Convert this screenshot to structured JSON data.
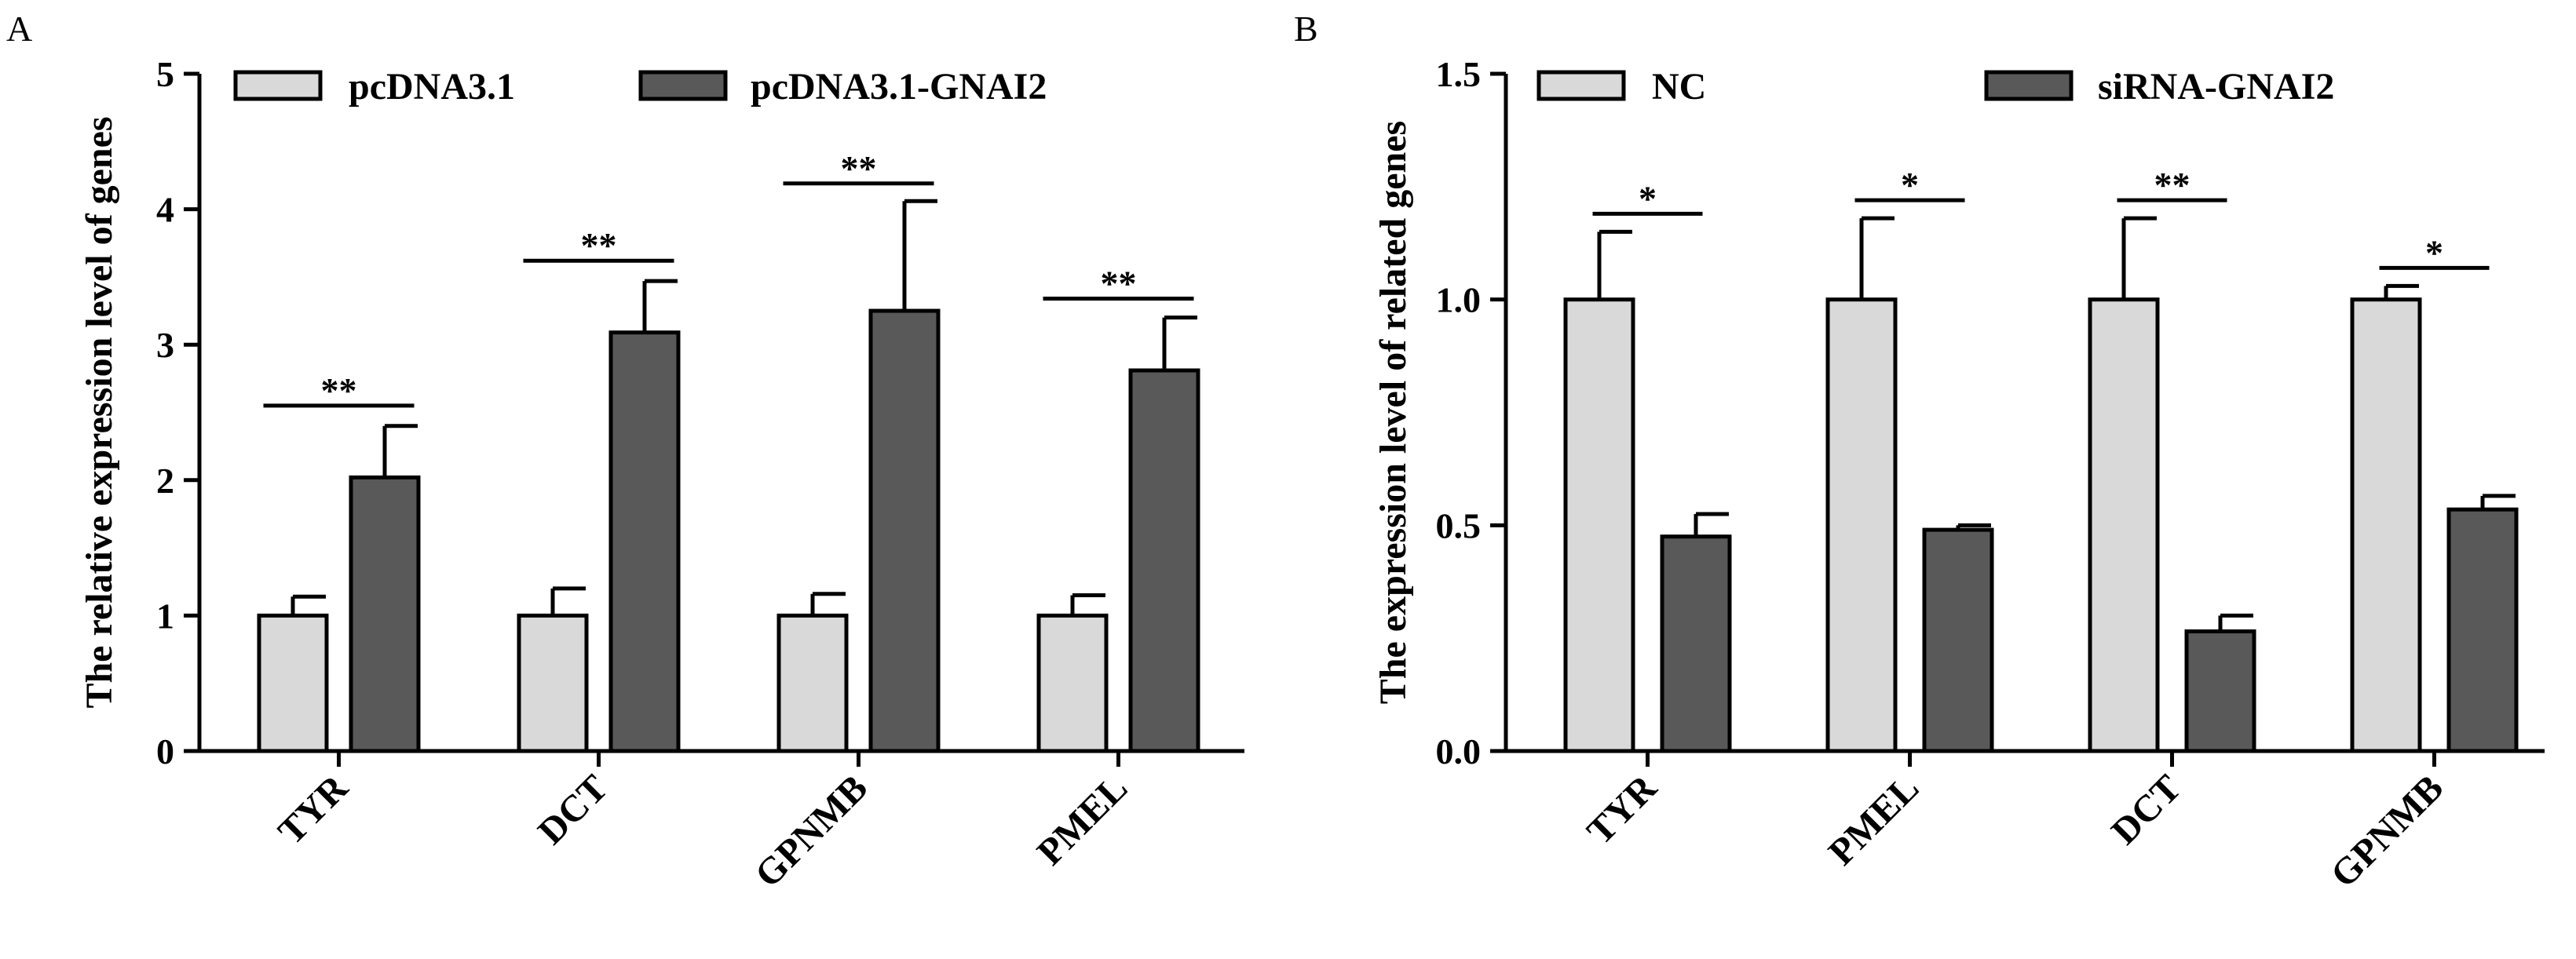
{
  "chart_data": [
    {
      "panel": "A",
      "type": "bar",
      "title": "",
      "xlabel": "",
      "ylabel": "The relative expression level of genes",
      "ylim": [
        0,
        5
      ],
      "yticks": [
        "0",
        "1",
        "2",
        "3",
        "4",
        "5"
      ],
      "categories": [
        "TYR",
        "DCT",
        "GPNMB",
        "PMEL"
      ],
      "series": [
        {
          "name": "pcDNA3.1",
          "color": "#d9d9d9",
          "values": [
            1.0,
            1.0,
            1.0,
            1.0
          ],
          "errors": [
            0.14,
            0.2,
            0.16,
            0.15
          ]
        },
        {
          "name": "pcDNA3.1-GNAI2",
          "color": "#595959",
          "values": [
            2.02,
            3.09,
            3.25,
            2.81
          ],
          "errors": [
            0.38,
            0.38,
            0.81,
            0.39
          ]
        }
      ],
      "significance": [
        {
          "label": "**",
          "y": 2.55
        },
        {
          "label": "**",
          "y": 3.62
        },
        {
          "label": "**",
          "y": 4.19
        },
        {
          "label": "**",
          "y": 3.34
        }
      ],
      "legend": "top"
    },
    {
      "panel": "B",
      "type": "bar",
      "title": "",
      "xlabel": "",
      "ylabel": "The expression level of related genes",
      "ylim": [
        0,
        1.5
      ],
      "yticks": [
        "0.0",
        "0.5",
        "1.0",
        "1.5"
      ],
      "categories": [
        "TYR",
        "PMEL",
        "DCT",
        "GPNMB"
      ],
      "series": [
        {
          "name": "NC",
          "color": "#d9d9d9",
          "values": [
            1.0,
            1.0,
            1.0,
            1.0
          ],
          "errors": [
            0.15,
            0.18,
            0.18,
            0.03
          ]
        },
        {
          "name": "siRNA-GNAI2",
          "color": "#595959",
          "values": [
            0.475,
            0.49,
            0.265,
            0.535
          ],
          "errors": [
            0.05,
            0.01,
            0.035,
            0.03
          ]
        }
      ],
      "significance": [
        {
          "label": "*",
          "y": 1.19
        },
        {
          "label": "*",
          "y": 1.22
        },
        {
          "label": "**",
          "y": 1.22
        },
        {
          "label": "*",
          "y": 1.07
        }
      ],
      "legend": "top"
    }
  ]
}
